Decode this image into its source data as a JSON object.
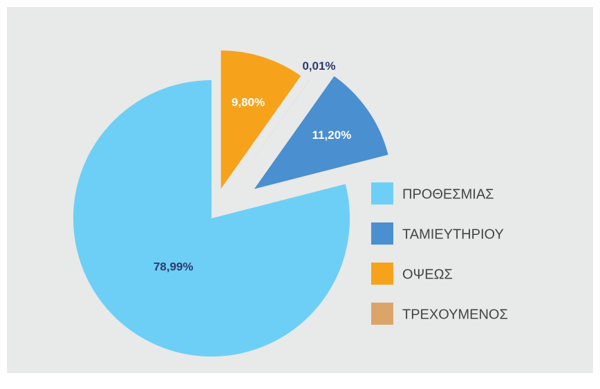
{
  "chart_data": {
    "type": "pie",
    "categories": [
      "ΠΡΟΘΕΣΜΙΑΣ",
      "ΤΑΜΙΕΥΤΗΡΙΟΥ",
      "ΟΨΕΩΣ",
      "ΤΡΕΧΟΥΜΕΝΟΣ"
    ],
    "values": [
      78.99,
      11.2,
      9.8,
      0.01
    ],
    "value_labels": [
      "78,99%",
      "11,20%",
      "9,80%",
      "0,01%"
    ],
    "colors": [
      "#6dcff6",
      "#4a8fd0",
      "#f7a21b",
      "#dba56a"
    ],
    "legend": "right"
  }
}
